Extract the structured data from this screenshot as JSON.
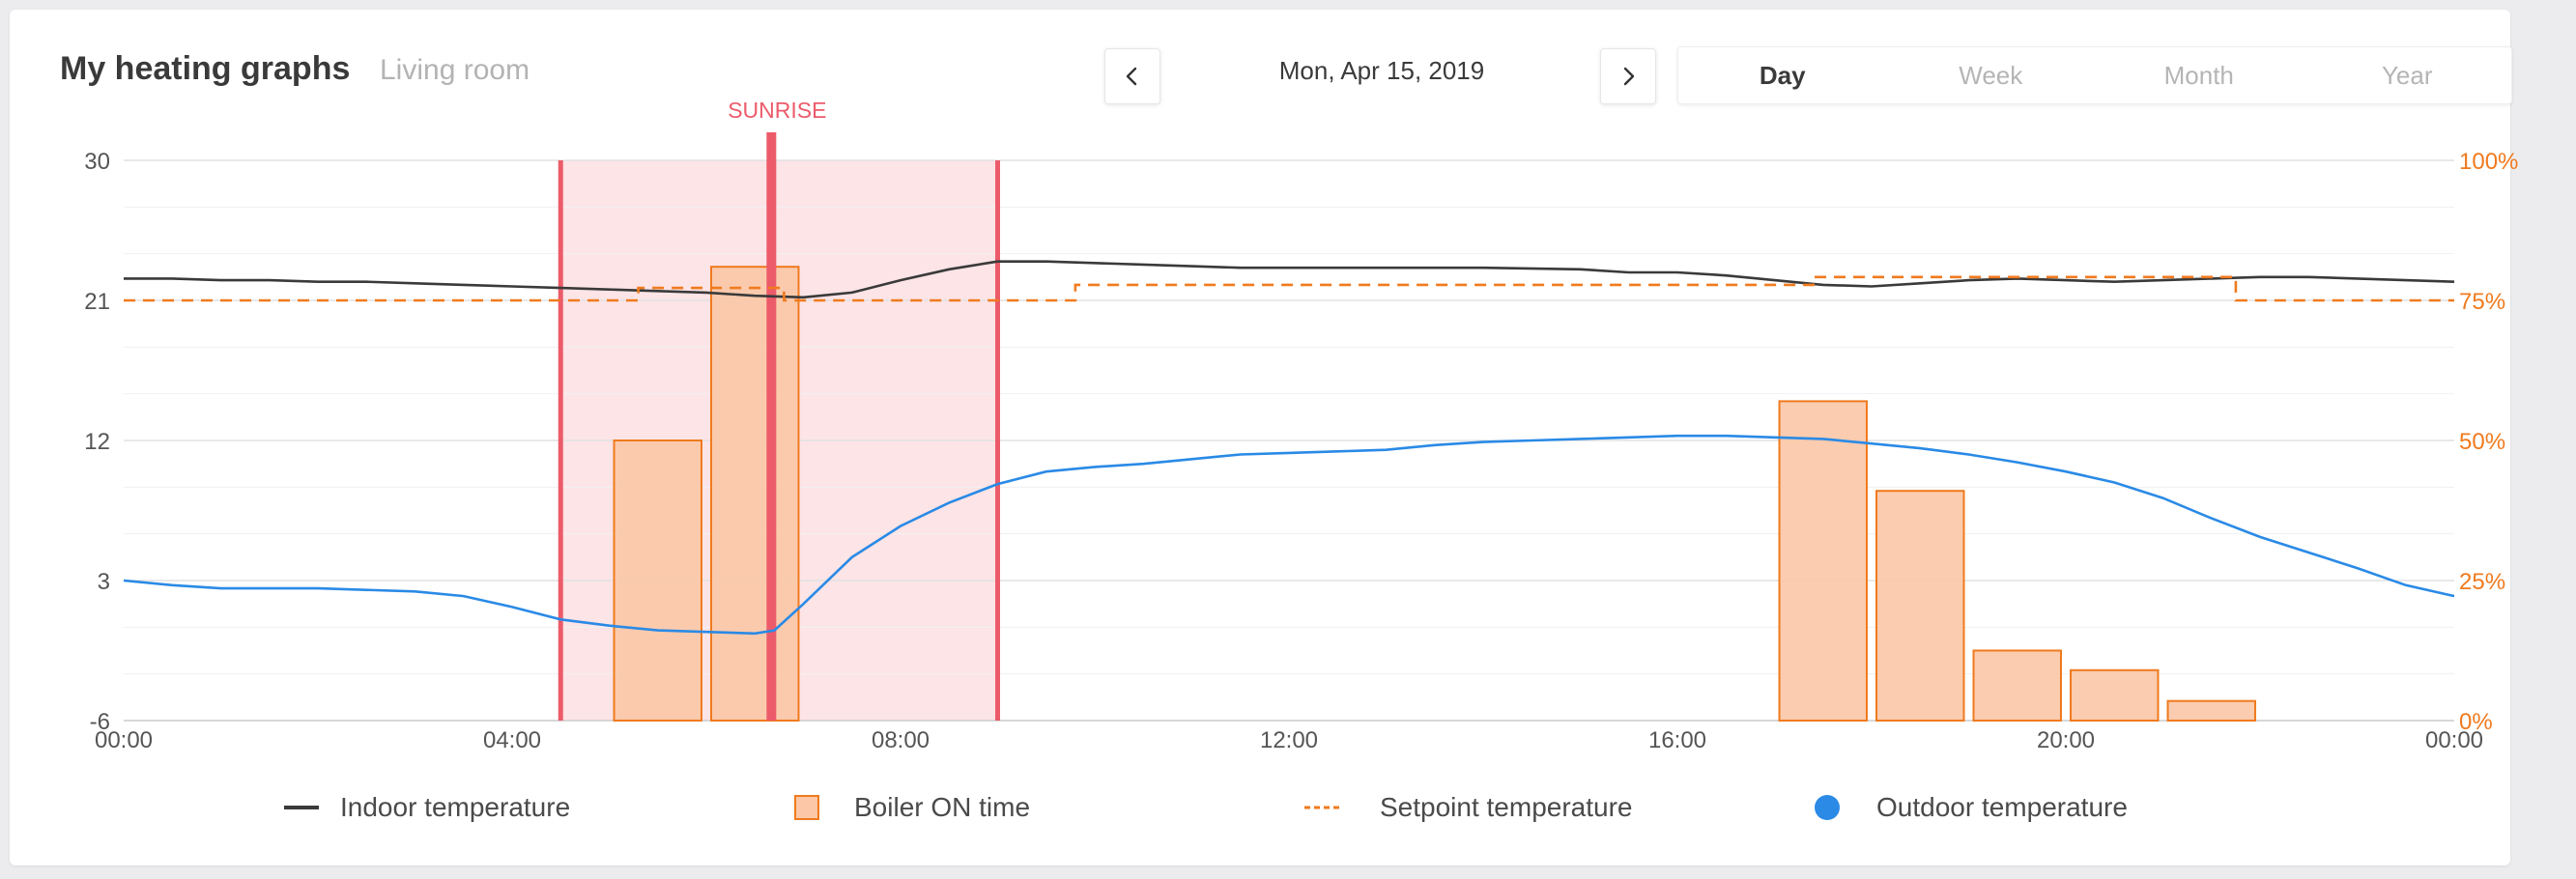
{
  "header": {
    "title": "My heating graphs",
    "room": "Living room",
    "date": "Mon, Apr 15, 2019",
    "prev_icon": "chevron-left-icon",
    "next_icon": "chevron-right-icon"
  },
  "range_tabs": [
    {
      "label": "Day",
      "active": true
    },
    {
      "label": "Week",
      "active": false
    },
    {
      "label": "Month",
      "active": false
    },
    {
      "label": "Year",
      "active": false
    }
  ],
  "legend": {
    "indoor": "Indoor temperature",
    "boiler": "Boiler ON time",
    "setpoint": "Setpoint temperature",
    "outdoor": "Outdoor temperature"
  },
  "colors": {
    "indoor": "#3a3a3a",
    "boiler_fill": "#fbc7a6",
    "boiler_stroke": "#f07a1e",
    "setpoint": "#f07a1e",
    "outdoor": "#2a8ae6",
    "sunrise": "#ec5b6a",
    "night_shade": "#fde4e6",
    "right_axis": "#f07a1e"
  },
  "chart_data": {
    "type": "line",
    "x_unit": "hours",
    "xlim": [
      0,
      24
    ],
    "x_ticks": [
      "00:00",
      "04:00",
      "08:00",
      "12:00",
      "16:00",
      "20:00",
      "00:00"
    ],
    "ylim": [
      -6,
      30
    ],
    "y_ticks": [
      "-6",
      "3",
      "12",
      "21",
      "30"
    ],
    "y2lim": [
      0,
      100
    ],
    "y2_ticks": [
      "0%",
      "25%",
      "50%",
      "75%",
      "100%"
    ],
    "grid": true,
    "legend_position": "bottom",
    "sunrise": {
      "label": "SUNRISE",
      "time": 6.67
    },
    "shaded_band": [
      4.5,
      9.0
    ],
    "series": [
      {
        "name": "Indoor temperature",
        "type": "line",
        "points": [
          [
            0,
            22.4
          ],
          [
            0.5,
            22.4
          ],
          [
            1,
            22.3
          ],
          [
            1.5,
            22.3
          ],
          [
            2,
            22.2
          ],
          [
            2.5,
            22.2
          ],
          [
            3,
            22.1
          ],
          [
            3.5,
            22
          ],
          [
            4,
            21.9
          ],
          [
            4.5,
            21.8
          ],
          [
            5,
            21.7
          ],
          [
            5.5,
            21.6
          ],
          [
            6,
            21.5
          ],
          [
            6.5,
            21.3
          ],
          [
            7,
            21.2
          ],
          [
            7.5,
            21.5
          ],
          [
            8,
            22.3
          ],
          [
            8.5,
            23
          ],
          [
            9,
            23.5
          ],
          [
            9.5,
            23.5
          ],
          [
            10,
            23.4
          ],
          [
            10.5,
            23.3
          ],
          [
            11,
            23.2
          ],
          [
            11.5,
            23.1
          ],
          [
            12,
            23.1
          ],
          [
            13,
            23.1
          ],
          [
            14,
            23.1
          ],
          [
            15,
            23.0
          ],
          [
            15.5,
            22.8
          ],
          [
            16,
            22.8
          ],
          [
            16.5,
            22.6
          ],
          [
            17,
            22.3
          ],
          [
            17.5,
            22
          ],
          [
            18,
            21.9
          ],
          [
            18.5,
            22.1
          ],
          [
            19,
            22.3
          ],
          [
            19.5,
            22.4
          ],
          [
            20,
            22.3
          ],
          [
            20.5,
            22.2
          ],
          [
            21,
            22.3
          ],
          [
            21.5,
            22.4
          ],
          [
            22,
            22.5
          ],
          [
            22.5,
            22.5
          ],
          [
            23,
            22.4
          ],
          [
            23.5,
            22.3
          ],
          [
            24,
            22.2
          ]
        ]
      },
      {
        "name": "Setpoint temperature",
        "type": "step",
        "points": [
          [
            0,
            21
          ],
          [
            5.3,
            21
          ],
          [
            5.3,
            21.8
          ],
          [
            6.8,
            21.8
          ],
          [
            6.8,
            21
          ],
          [
            9.8,
            21
          ],
          [
            9.8,
            22
          ],
          [
            17.4,
            22
          ],
          [
            17.4,
            22.5
          ],
          [
            21.75,
            22.5
          ],
          [
            21.75,
            21
          ],
          [
            24,
            21
          ]
        ]
      },
      {
        "name": "Outdoor temperature",
        "type": "line",
        "points": [
          [
            0,
            3
          ],
          [
            0.5,
            2.7
          ],
          [
            1,
            2.5
          ],
          [
            2,
            2.5
          ],
          [
            3,
            2.3
          ],
          [
            3.5,
            2.0
          ],
          [
            4,
            1.3
          ],
          [
            4.5,
            0.5
          ],
          [
            5,
            0.1
          ],
          [
            5.5,
            -0.2
          ],
          [
            6,
            -0.3
          ],
          [
            6.5,
            -0.4
          ],
          [
            6.7,
            -0.2
          ],
          [
            7,
            1.5
          ],
          [
            7.5,
            4.5
          ],
          [
            8,
            6.5
          ],
          [
            8.5,
            8
          ],
          [
            9,
            9.2
          ],
          [
            9.5,
            10
          ],
          [
            10,
            10.3
          ],
          [
            10.5,
            10.5
          ],
          [
            11,
            10.8
          ],
          [
            11.5,
            11.1
          ],
          [
            12,
            11.2
          ],
          [
            12.5,
            11.3
          ],
          [
            13,
            11.4
          ],
          [
            13.5,
            11.7
          ],
          [
            14,
            11.9
          ],
          [
            14.5,
            12
          ],
          [
            15,
            12.1
          ],
          [
            15.5,
            12.2
          ],
          [
            16,
            12.3
          ],
          [
            16.5,
            12.3
          ],
          [
            17,
            12.2
          ],
          [
            17.5,
            12.1
          ],
          [
            18,
            11.8
          ],
          [
            18.5,
            11.5
          ],
          [
            19,
            11.1
          ],
          [
            19.5,
            10.6
          ],
          [
            20,
            10
          ],
          [
            20.5,
            9.3
          ],
          [
            21,
            8.3
          ],
          [
            21.5,
            7
          ],
          [
            22,
            5.8
          ],
          [
            22.5,
            4.8
          ],
          [
            23,
            3.8
          ],
          [
            23.5,
            2.7
          ],
          [
            24,
            2
          ]
        ]
      },
      {
        "name": "Boiler ON time",
        "type": "bar",
        "axis": "right",
        "bars": [
          {
            "x": 5.5,
            "value": 50
          },
          {
            "x": 6.5,
            "value": 81
          },
          {
            "x": 17.5,
            "value": 57
          },
          {
            "x": 18.5,
            "value": 41
          },
          {
            "x": 19.5,
            "value": 12.5
          },
          {
            "x": 20.5,
            "value": 9
          },
          {
            "x": 21.5,
            "value": 3.5
          }
        ]
      }
    ]
  }
}
